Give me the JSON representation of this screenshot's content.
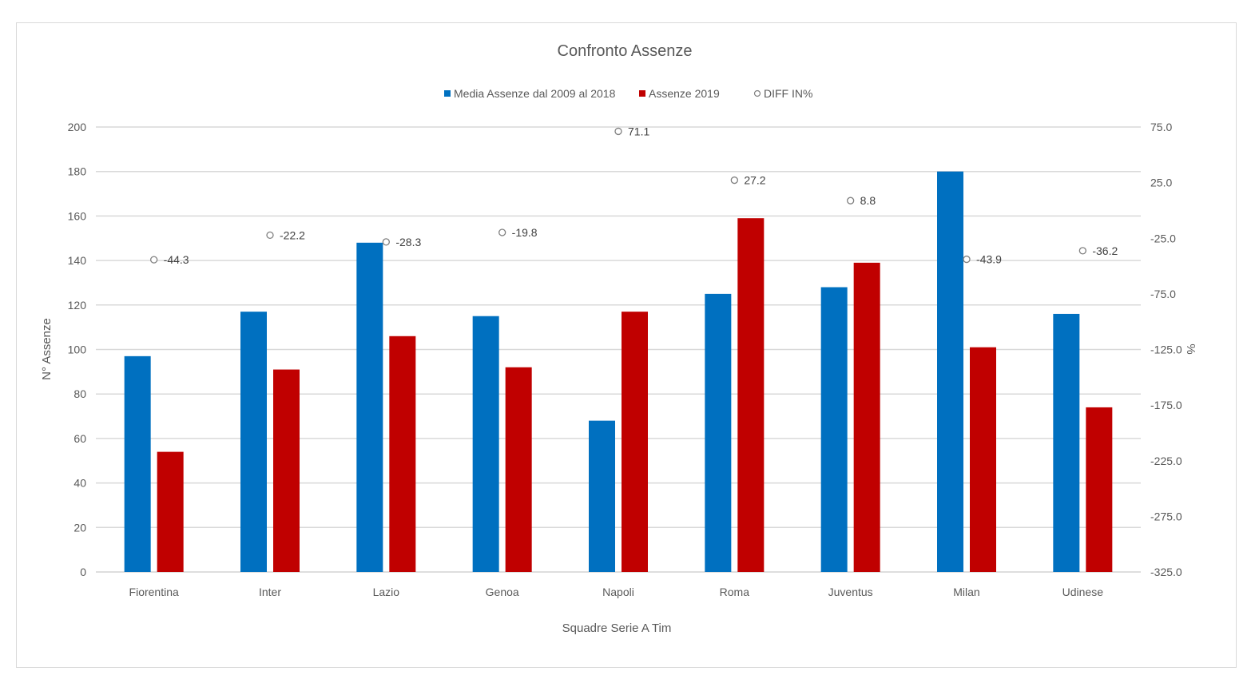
{
  "chart_data": {
    "type": "bar",
    "title": "Confronto Assenze",
    "xlabel": "Squadre Serie  A Tim",
    "ylabel": "N° Assenze",
    "y2label": "%",
    "ylim": [
      0,
      200
    ],
    "y2lim": [
      -325,
      75
    ],
    "yticks": [
      "0",
      "20",
      "40",
      "60",
      "80",
      "100",
      "120",
      "140",
      "160",
      "180",
      "200"
    ],
    "y2ticks": [
      "-325.0",
      "-275.0",
      "-225.0",
      "-175.0",
      "-125.0",
      "-75.0",
      "-25.0",
      "25.0",
      "75.0"
    ],
    "grid": true,
    "legend_position": "top",
    "categories": [
      "Fiorentina",
      "Inter",
      "Lazio",
      "Genoa",
      "Napoli",
      "Roma",
      "Juventus",
      "Milan",
      "Udinese"
    ],
    "series": [
      {
        "name": "Media Assenze dal 2009 al 2018",
        "type": "bar",
        "axis": "left",
        "color": "#0070c0",
        "values": [
          97,
          117,
          148,
          115,
          68,
          125,
          128,
          180,
          116
        ]
      },
      {
        "name": "Assenze 2019",
        "type": "bar",
        "axis": "left",
        "color": "#c00000",
        "values": [
          54,
          91,
          106,
          92,
          117,
          159,
          139,
          101,
          74
        ]
      },
      {
        "name": "DIFF IN%",
        "type": "scatter",
        "axis": "right",
        "color": "#7f7f7f",
        "values": [
          -44.3,
          -22.2,
          -28.3,
          -19.8,
          71.1,
          27.2,
          8.8,
          -43.9,
          -36.2
        ],
        "labels": [
          "-44.3",
          "-22.2",
          "-28.3",
          "-19.8",
          "71.1",
          "27.2",
          "8.8",
          "-43.9",
          "-36.2"
        ]
      }
    ]
  }
}
